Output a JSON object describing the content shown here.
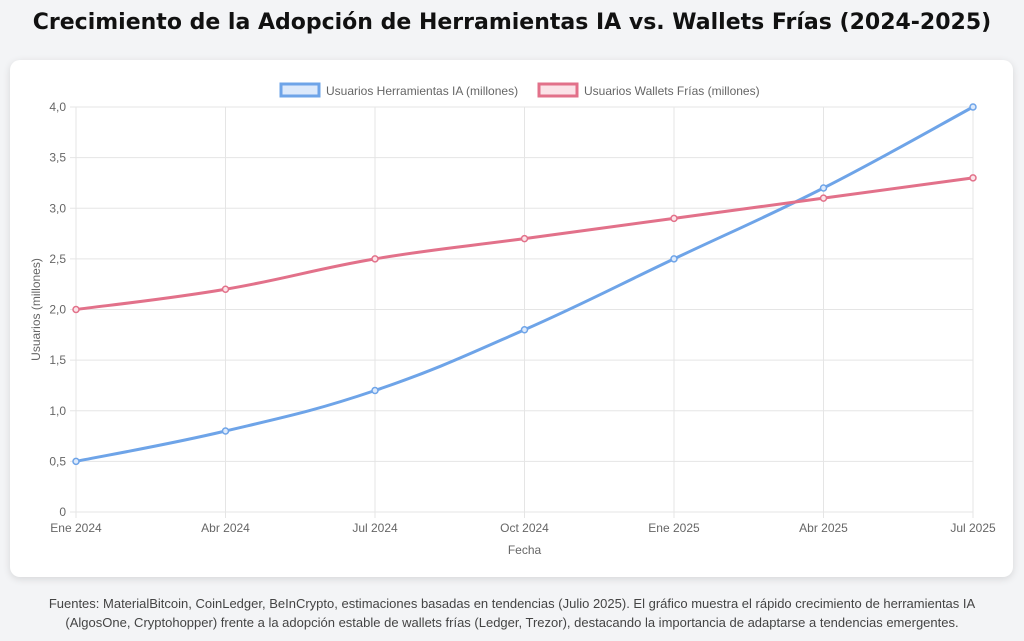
{
  "title": "Crecimiento de la Adopción de Herramientas IA vs. Wallets Frías (2024-2025)",
  "footer": "Fuentes: MaterialBitcoin, CoinLedger, BeInCrypto, estimaciones basadas en tendencias (Julio 2025). El gráfico muestra el rápido crecimiento de herramientas IA (AlgosOne, Cryptohopper) frente a la adopción estable de wallets frías (Ledger, Trezor), destacando la importancia de adaptarse a tendencias emergentes.",
  "chart_data": {
    "type": "line",
    "categories": [
      "Ene 2024",
      "Abr 2024",
      "Jul 2024",
      "Oct 2024",
      "Ene 2025",
      "Abr 2025",
      "Jul 2025"
    ],
    "series": [
      {
        "name": "Usuarios Herramientas IA (millones)",
        "values": [
          0.5,
          0.8,
          1.2,
          1.8,
          2.5,
          3.2,
          4.0
        ],
        "color": "#6ea4e8",
        "fill": "#dce9fb"
      },
      {
        "name": "Usuarios Wallets Frías (millones)",
        "values": [
          2.0,
          2.2,
          2.5,
          2.7,
          2.9,
          3.1,
          3.3
        ],
        "color": "#e2718a",
        "fill": "#fbe3e8"
      }
    ],
    "xlabel": "Fecha",
    "ylabel": "Usuarios (millones)",
    "ylim": [
      0,
      4
    ],
    "yticks": [
      "0",
      "0,5",
      "1,0",
      "1,5",
      "2,0",
      "2,5",
      "3,0",
      "3,5",
      "4,0"
    ],
    "grid": true,
    "legend": "top"
  }
}
